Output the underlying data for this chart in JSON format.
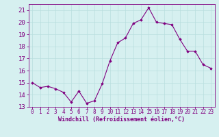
{
  "x": [
    0,
    1,
    2,
    3,
    4,
    5,
    6,
    7,
    8,
    9,
    10,
    11,
    12,
    13,
    14,
    15,
    16,
    17,
    18,
    19,
    20,
    21,
    22,
    23
  ],
  "y": [
    15.0,
    14.6,
    14.7,
    14.5,
    14.2,
    13.4,
    14.3,
    13.3,
    13.5,
    14.9,
    16.8,
    18.3,
    18.7,
    19.9,
    20.2,
    21.2,
    20.0,
    19.9,
    19.8,
    18.6,
    17.6,
    17.6,
    16.5,
    16.2
  ],
  "xlim": [
    -0.5,
    23.5
  ],
  "ylim": [
    13,
    21.5
  ],
  "yticks": [
    13,
    14,
    15,
    16,
    17,
    18,
    19,
    20,
    21
  ],
  "xticks": [
    0,
    1,
    2,
    3,
    4,
    5,
    6,
    7,
    8,
    9,
    10,
    11,
    12,
    13,
    14,
    15,
    16,
    17,
    18,
    19,
    20,
    21,
    22,
    23
  ],
  "line_color": "#800080",
  "marker": "D",
  "marker_size": 1.8,
  "line_width": 0.8,
  "bg_color": "#d6f0f0",
  "grid_color": "#b8dede",
  "xlabel": "Windchill (Refroidissement éolien,°C)",
  "xlabel_color": "#800080",
  "xlabel_fontsize": 6.0,
  "tick_color": "#800080",
  "tick_fontsize": 5.5,
  "ytick_fontsize": 6.5,
  "title": ""
}
